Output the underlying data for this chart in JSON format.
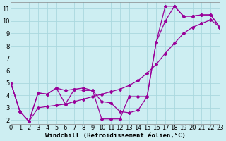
{
  "xlabel": "Windchill (Refroidissement éolien,°C)",
  "bg_color": "#cdeef2",
  "grid_color": "#aad8de",
  "line_color": "#990099",
  "line1_x": [
    0,
    1,
    2,
    3,
    4,
    5,
    6,
    7,
    8,
    9,
    10,
    11,
    12,
    13,
    14,
    15,
    16,
    17,
    18,
    19,
    20,
    21,
    22,
    23
  ],
  "line1_y": [
    5.0,
    2.7,
    1.9,
    4.2,
    4.1,
    4.6,
    3.3,
    4.5,
    4.6,
    4.4,
    3.5,
    3.4,
    2.7,
    2.6,
    2.8,
    3.9,
    8.3,
    11.2,
    11.2,
    10.4,
    10.4,
    10.5,
    10.5,
    9.5
  ],
  "line2_x": [
    0,
    1,
    2,
    3,
    4,
    5,
    6,
    7,
    8,
    9,
    10,
    11,
    12,
    13,
    14,
    15,
    16,
    17,
    18,
    19,
    20,
    21,
    22,
    23
  ],
  "line2_y": [
    5.0,
    2.7,
    1.9,
    3.0,
    3.1,
    3.2,
    3.3,
    3.5,
    3.7,
    3.9,
    4.1,
    4.3,
    4.5,
    4.8,
    5.2,
    5.8,
    6.5,
    7.4,
    8.2,
    9.0,
    9.5,
    9.8,
    10.1,
    9.5
  ],
  "line3_x": [
    0,
    1,
    2,
    3,
    4,
    5,
    6,
    7,
    8,
    9,
    10,
    11,
    12,
    13,
    14,
    15,
    16,
    17,
    18,
    19,
    20,
    21,
    22,
    23
  ],
  "line3_y": [
    5.0,
    2.7,
    1.9,
    4.2,
    4.1,
    4.6,
    4.4,
    4.5,
    4.4,
    4.4,
    2.1,
    2.1,
    2.1,
    3.9,
    3.9,
    3.9,
    8.3,
    10.0,
    11.2,
    10.4,
    10.4,
    10.5,
    10.5,
    9.5
  ],
  "xlim": [
    0,
    23
  ],
  "ylim": [
    1.7,
    11.5
  ],
  "xticks": [
    0,
    1,
    2,
    3,
    4,
    5,
    6,
    7,
    8,
    9,
    10,
    11,
    12,
    13,
    14,
    15,
    16,
    17,
    18,
    19,
    20,
    21,
    22,
    23
  ],
  "yticks": [
    2,
    3,
    4,
    5,
    6,
    7,
    8,
    9,
    10,
    11
  ],
  "fontsize_label": 6.5,
  "fontsize_tick": 6.0,
  "markersize": 2.0,
  "linewidth": 0.9
}
